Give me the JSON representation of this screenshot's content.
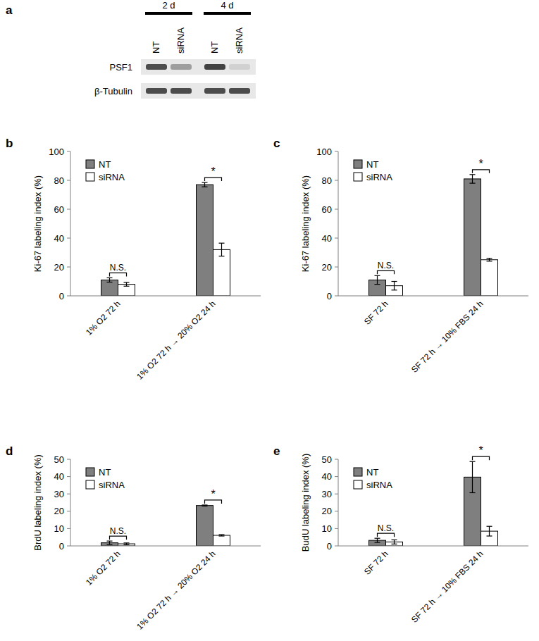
{
  "blot": {
    "panel": "a",
    "groups": [
      "2 d",
      "4 d"
    ],
    "lanes": [
      "NT",
      "siRNA",
      "NT",
      "siRNA"
    ],
    "rows": [
      {
        "label": "PSF1",
        "intensity": [
          0.85,
          0.4,
          0.9,
          0.12
        ]
      },
      {
        "label": "β-Tubulin",
        "intensity": [
          0.85,
          0.85,
          0.85,
          0.85
        ]
      }
    ]
  },
  "chart_data": [
    {
      "type": "bar",
      "panel": "b",
      "y_label": "Ki-67 labeling index (%)",
      "categories": [
        "1% O2 72 h",
        "1% O2 72 h → 20% O2 24 h"
      ],
      "series": [
        {
          "name": "NT",
          "color": "#7f7f7f",
          "values": [
            11,
            77
          ],
          "errors": [
            1.5,
            1.5
          ]
        },
        {
          "name": "siRNA",
          "color": "#ffffff",
          "values": [
            8,
            32
          ],
          "errors": [
            1.3,
            4.5
          ]
        }
      ],
      "significance": [
        "N.S.",
        "*"
      ],
      "ylim": [
        0,
        100
      ],
      "yticks": [
        0,
        20,
        40,
        60,
        80,
        100
      ],
      "legend": "upper left"
    },
    {
      "type": "bar",
      "panel": "c",
      "y_label": "Ki-67 labeling index (%)",
      "categories": [
        "SF 72 h",
        "SF 72 h → 10% FBS 24 h"
      ],
      "series": [
        {
          "name": "NT",
          "color": "#7f7f7f",
          "values": [
            11,
            81
          ],
          "errors": [
            3,
            3
          ]
        },
        {
          "name": "siRNA",
          "color": "#ffffff",
          "values": [
            7,
            25
          ],
          "errors": [
            3,
            1
          ]
        }
      ],
      "significance": [
        "N.S.",
        "*"
      ],
      "ylim": [
        0,
        100
      ],
      "yticks": [
        0,
        20,
        40,
        60,
        80,
        100
      ],
      "legend": "upper left"
    },
    {
      "type": "bar",
      "panel": "d",
      "y_label": "BrdU labeling index (%)",
      "categories": [
        "1% O2 72 h",
        "1% O2 72 h → 20% O2 24 h"
      ],
      "series": [
        {
          "name": "NT",
          "color": "#7f7f7f",
          "values": [
            1.8,
            23.3
          ],
          "errors": [
            1,
            0.3
          ]
        },
        {
          "name": "siRNA",
          "color": "#ffffff",
          "values": [
            1.2,
            6.1
          ],
          "errors": [
            0.5,
            0.4
          ]
        }
      ],
      "significance": [
        "N.S.",
        "*"
      ],
      "ylim": [
        0,
        50
      ],
      "yticks": [
        0,
        10,
        20,
        30,
        40,
        50
      ],
      "legend": "upper left"
    },
    {
      "type": "bar",
      "panel": "e",
      "y_label": "BudU labeling index (%)",
      "categories": [
        "SF 72 h",
        "SF 72 h → 10% FBS 24 h"
      ],
      "series": [
        {
          "name": "NT",
          "color": "#7f7f7f",
          "values": [
            3.2,
            39.7
          ],
          "errors": [
            1.2,
            9
          ]
        },
        {
          "name": "siRNA",
          "color": "#ffffff",
          "values": [
            2.3,
            8.5
          ],
          "errors": [
            1.2,
            2.8
          ]
        }
      ],
      "significance": [
        "N.S.",
        "*"
      ],
      "ylim": [
        0,
        50
      ],
      "yticks": [
        0,
        10,
        20,
        30,
        40,
        50
      ],
      "legend": "upper left"
    }
  ]
}
